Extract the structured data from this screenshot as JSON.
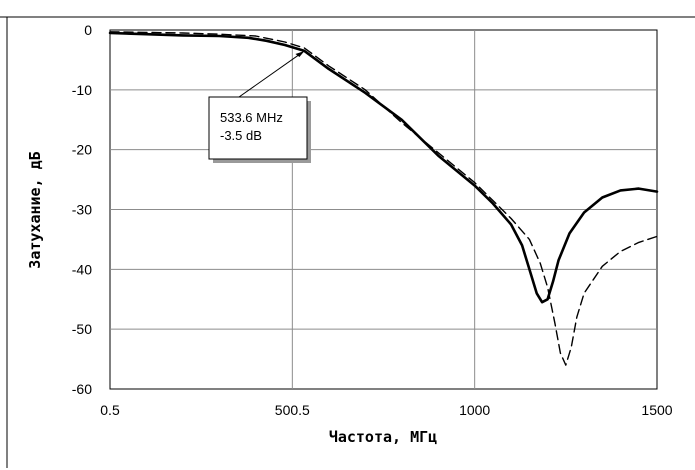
{
  "chart_data": {
    "type": "line",
    "title": "",
    "xlabel": "Частота, МГц",
    "ylabel": "Затухание, дБ",
    "xlim": [
      0.5,
      1500
    ],
    "ylim": [
      -60,
      0
    ],
    "x_ticks": [
      0.5,
      500.5,
      1000,
      1500
    ],
    "x_tick_labels": [
      "0.5",
      "500.5",
      "1000",
      "1500"
    ],
    "y_ticks": [
      0,
      -10,
      -20,
      -30,
      -40,
      -50,
      -60
    ],
    "y_tick_labels": [
      "0",
      "-10",
      "-20",
      "-30",
      "-40",
      "-50",
      "-60"
    ],
    "grid": true,
    "legend": "none",
    "series": [
      {
        "style": "solid",
        "color": "#000000",
        "x": [
          0.5,
          100,
          200,
          300,
          380,
          430,
          480,
          533.6,
          600,
          700,
          800,
          900,
          1000,
          1050,
          1100,
          1130,
          1150,
          1170,
          1185,
          1200,
          1215,
          1230,
          1260,
          1300,
          1350,
          1400,
          1450,
          1500
        ],
        "y": [
          -0.5,
          -0.7,
          -0.9,
          -1.0,
          -1.3,
          -1.8,
          -2.5,
          -3.5,
          -6.5,
          -10.5,
          -15.0,
          -21.0,
          -26.0,
          -29.0,
          -32.5,
          -36.0,
          -40.0,
          -44.0,
          -45.5,
          -45.0,
          -42.0,
          -38.5,
          -34.0,
          -30.5,
          -28.0,
          -26.8,
          -26.5,
          -27.0
        ]
      },
      {
        "style": "dashed",
        "color": "#000000",
        "x": [
          0.5,
          100,
          200,
          300,
          400,
          480,
          533.6,
          600,
          700,
          800,
          900,
          1000,
          1050,
          1100,
          1150,
          1180,
          1200,
          1220,
          1235,
          1250,
          1265,
          1280,
          1300,
          1350,
          1400,
          1450,
          1500
        ],
        "y": [
          -0.3,
          -0.4,
          -0.5,
          -0.7,
          -1.0,
          -2.0,
          -3.0,
          -6.0,
          -10.0,
          -15.5,
          -20.5,
          -25.5,
          -28.5,
          -31.5,
          -35.0,
          -39.0,
          -43.0,
          -49.0,
          -54.0,
          -56.0,
          -53.0,
          -48.0,
          -44.0,
          -39.5,
          -37.0,
          -35.5,
          -34.5
        ]
      }
    ],
    "annotation": {
      "text_lines": [
        "533.6 MHz",
        "-3.5 dB"
      ],
      "x": 533.6,
      "y": -3.5
    }
  }
}
